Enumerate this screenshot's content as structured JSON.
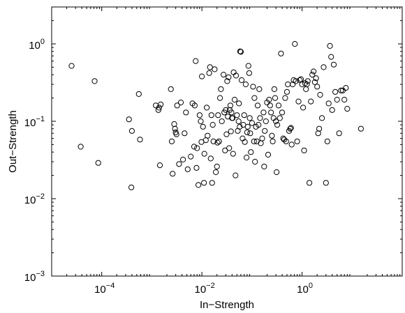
{
  "chart_data": {
    "type": "scatter",
    "xscale": "log",
    "yscale": "log",
    "xlabel": "In−Strength",
    "ylabel": "Out−Strength",
    "xlim": [
      1e-05,
      100
    ],
    "ylim": [
      0.001,
      3
    ],
    "xticks": [
      {
        "value": 0.0001,
        "base": "10",
        "exp": "−4"
      },
      {
        "value": 0.01,
        "base": "10",
        "exp": "−2"
      },
      {
        "value": 1,
        "base": "10",
        "exp": "0"
      }
    ],
    "yticks": [
      {
        "value": 0.001,
        "base": "10",
        "exp": "−3"
      },
      {
        "value": 0.01,
        "base": "10",
        "exp": "−2"
      },
      {
        "value": 0.1,
        "base": "10",
        "exp": "−1"
      },
      {
        "value": 1,
        "base": "10",
        "exp": "0"
      }
    ],
    "grid": false,
    "marker": "open-circle",
    "marker_color": "#000000",
    "points": [
      [
        2.5e-05,
        0.52
      ],
      [
        3.8e-05,
        0.047
      ],
      [
        7.2e-05,
        0.33
      ],
      [
        8.5e-05,
        0.029
      ],
      [
        0.00035,
        0.106
      ],
      [
        0.0004,
        0.075
      ],
      [
        0.00039,
        0.014
      ],
      [
        0.00055,
        0.225
      ],
      [
        0.00058,
        0.058
      ],
      [
        0.0012,
        0.16
      ],
      [
        0.00135,
        0.14
      ],
      [
        0.0014,
        0.15
      ],
      [
        0.0015,
        0.165
      ],
      [
        0.00145,
        0.027
      ],
      [
        0.0024,
        0.26
      ],
      [
        0.0025,
        0.055
      ],
      [
        0.0026,
        0.021
      ],
      [
        0.0028,
        0.092
      ],
      [
        0.0029,
        0.08
      ],
      [
        0.003,
        0.072
      ],
      [
        0.0031,
        0.068
      ],
      [
        0.0032,
        0.16
      ],
      [
        0.0035,
        0.028
      ],
      [
        0.0038,
        0.175
      ],
      [
        0.0042,
        0.032
      ],
      [
        0.0045,
        0.07
      ],
      [
        0.0048,
        0.13
      ],
      [
        0.0052,
        0.024
      ],
      [
        0.006,
        0.035
      ],
      [
        0.0065,
        0.17
      ],
      [
        0.007,
        0.047
      ],
      [
        0.0072,
        0.16
      ],
      [
        0.0075,
        0.6
      ],
      [
        0.0078,
        0.025
      ],
      [
        0.008,
        0.045
      ],
      [
        0.0085,
        0.015
      ],
      [
        0.009,
        0.12
      ],
      [
        0.0095,
        0.1
      ],
      [
        0.01,
        0.38
      ],
      [
        0.0098,
        0.054
      ],
      [
        0.0105,
        0.085
      ],
      [
        0.011,
        0.016
      ],
      [
        0.0112,
        0.038
      ],
      [
        0.012,
        0.057
      ],
      [
        0.0125,
        0.15
      ],
      [
        0.013,
        0.065
      ],
      [
        0.014,
        0.42
      ],
      [
        0.0145,
        0.5
      ],
      [
        0.015,
        0.033
      ],
      [
        0.0155,
        0.12
      ],
      [
        0.016,
        0.016
      ],
      [
        0.0165,
        0.09
      ],
      [
        0.017,
        0.055
      ],
      [
        0.018,
        0.47
      ],
      [
        0.019,
        0.022
      ],
      [
        0.02,
        0.026
      ],
      [
        0.0205,
        0.053
      ],
      [
        0.021,
        0.12
      ],
      [
        0.022,
        0.055
      ],
      [
        0.023,
        0.2
      ],
      [
        0.024,
        0.26
      ],
      [
        0.025,
        0.1
      ],
      [
        0.027,
        0.4
      ],
      [
        0.028,
        0.13
      ],
      [
        0.029,
        0.042
      ],
      [
        0.03,
        0.14
      ],
      [
        0.031,
        0.068
      ],
      [
        0.032,
        0.33
      ],
      [
        0.033,
        0.115
      ],
      [
        0.034,
        0.37
      ],
      [
        0.035,
        0.045
      ],
      [
        0.036,
        0.14
      ],
      [
        0.037,
        0.16
      ],
      [
        0.038,
        0.074
      ],
      [
        0.039,
        0.13
      ],
      [
        0.04,
        0.11
      ],
      [
        0.041,
        0.11
      ],
      [
        0.042,
        0.038
      ],
      [
        0.043,
        0.43
      ],
      [
        0.045,
        0.19
      ],
      [
        0.047,
        0.02
      ],
      [
        0.048,
        0.39
      ],
      [
        0.05,
        0.12
      ],
      [
        0.052,
        0.075
      ],
      [
        0.054,
        0.1
      ],
      [
        0.055,
        0.17
      ],
      [
        0.057,
        0.085
      ],
      [
        0.06,
        0.79
      ],
      [
        0.058,
        0.8
      ],
      [
        0.062,
        0.34
      ],
      [
        0.065,
        0.06
      ],
      [
        0.067,
        0.09
      ],
      [
        0.07,
        0.12
      ],
      [
        0.072,
        0.054
      ],
      [
        0.075,
        0.3
      ],
      [
        0.078,
        0.034
      ],
      [
        0.08,
        0.072
      ],
      [
        0.082,
        0.085
      ],
      [
        0.085,
        0.52
      ],
      [
        0.088,
        0.42
      ],
      [
        0.09,
        0.11
      ],
      [
        0.092,
        0.07
      ],
      [
        0.095,
        0.04
      ],
      [
        0.1,
        0.095
      ],
      [
        0.105,
        0.28
      ],
      [
        0.11,
        0.055
      ],
      [
        0.112,
        0.2
      ],
      [
        0.115,
        0.03
      ],
      [
        0.12,
        0.085
      ],
      [
        0.125,
        0.055
      ],
      [
        0.13,
        0.16
      ],
      [
        0.135,
        0.09
      ],
      [
        0.14,
        0.26
      ],
      [
        0.145,
        0.11
      ],
      [
        0.15,
        0.052
      ],
      [
        0.16,
        0.06
      ],
      [
        0.17,
        0.13
      ],
      [
        0.175,
        0.026
      ],
      [
        0.18,
        0.075
      ],
      [
        0.19,
        0.1
      ],
      [
        0.2,
        0.175
      ],
      [
        0.21,
        0.037
      ],
      [
        0.22,
        0.19
      ],
      [
        0.23,
        0.16
      ],
      [
        0.24,
        0.13
      ],
      [
        0.25,
        0.065
      ],
      [
        0.26,
        0.055
      ],
      [
        0.27,
        0.11
      ],
      [
        0.28,
        0.26
      ],
      [
        0.29,
        0.2
      ],
      [
        0.3,
        0.1
      ],
      [
        0.31,
        0.022
      ],
      [
        0.32,
        0.09
      ],
      [
        0.34,
        0.16
      ],
      [
        0.36,
        0.11
      ],
      [
        0.38,
        0.75
      ],
      [
        0.4,
        0.13
      ],
      [
        0.42,
        0.06
      ],
      [
        0.44,
        0.058
      ],
      [
        0.46,
        0.2
      ],
      [
        0.48,
        0.055
      ],
      [
        0.5,
        0.24
      ],
      [
        0.52,
        0.3
      ],
      [
        0.55,
        0.075
      ],
      [
        0.58,
        0.08
      ],
      [
        0.6,
        0.082
      ],
      [
        0.62,
        0.05
      ],
      [
        0.65,
        0.3
      ],
      [
        0.68,
        0.34
      ],
      [
        0.72,
        1.0
      ],
      [
        0.75,
        0.33
      ],
      [
        0.8,
        0.055
      ],
      [
        0.85,
        0.18
      ],
      [
        0.9,
        0.34
      ],
      [
        0.95,
        0.35
      ],
      [
        1.0,
        0.3
      ],
      [
        1.05,
        0.15
      ],
      [
        1.1,
        0.042
      ],
      [
        1.15,
        0.31
      ],
      [
        1.2,
        0.26
      ],
      [
        1.25,
        0.3
      ],
      [
        1.3,
        0.33
      ],
      [
        1.4,
        0.016
      ],
      [
        1.5,
        0.18
      ],
      [
        1.6,
        0.4
      ],
      [
        1.7,
        0.44
      ],
      [
        1.8,
        0.32
      ],
      [
        1.9,
        0.36
      ],
      [
        2.0,
        0.28
      ],
      [
        2.1,
        0.07
      ],
      [
        2.2,
        0.08
      ],
      [
        2.3,
        0.22
      ],
      [
        2.5,
        0.11
      ],
      [
        2.7,
        0.5
      ],
      [
        3.0,
        0.016
      ],
      [
        3.2,
        0.055
      ],
      [
        3.4,
        0.17
      ],
      [
        3.6,
        0.94
      ],
      [
        3.8,
        0.68
      ],
      [
        4.0,
        0.14
      ],
      [
        4.3,
        0.54
      ],
      [
        4.6,
        0.24
      ],
      [
        5.0,
        0.19
      ],
      [
        5.5,
        0.07
      ],
      [
        6.0,
        0.25
      ],
      [
        6.5,
        0.25
      ],
      [
        7.0,
        0.19
      ],
      [
        7.5,
        0.27
      ],
      [
        8.0,
        0.145
      ],
      [
        15,
        0.08
      ]
    ]
  }
}
